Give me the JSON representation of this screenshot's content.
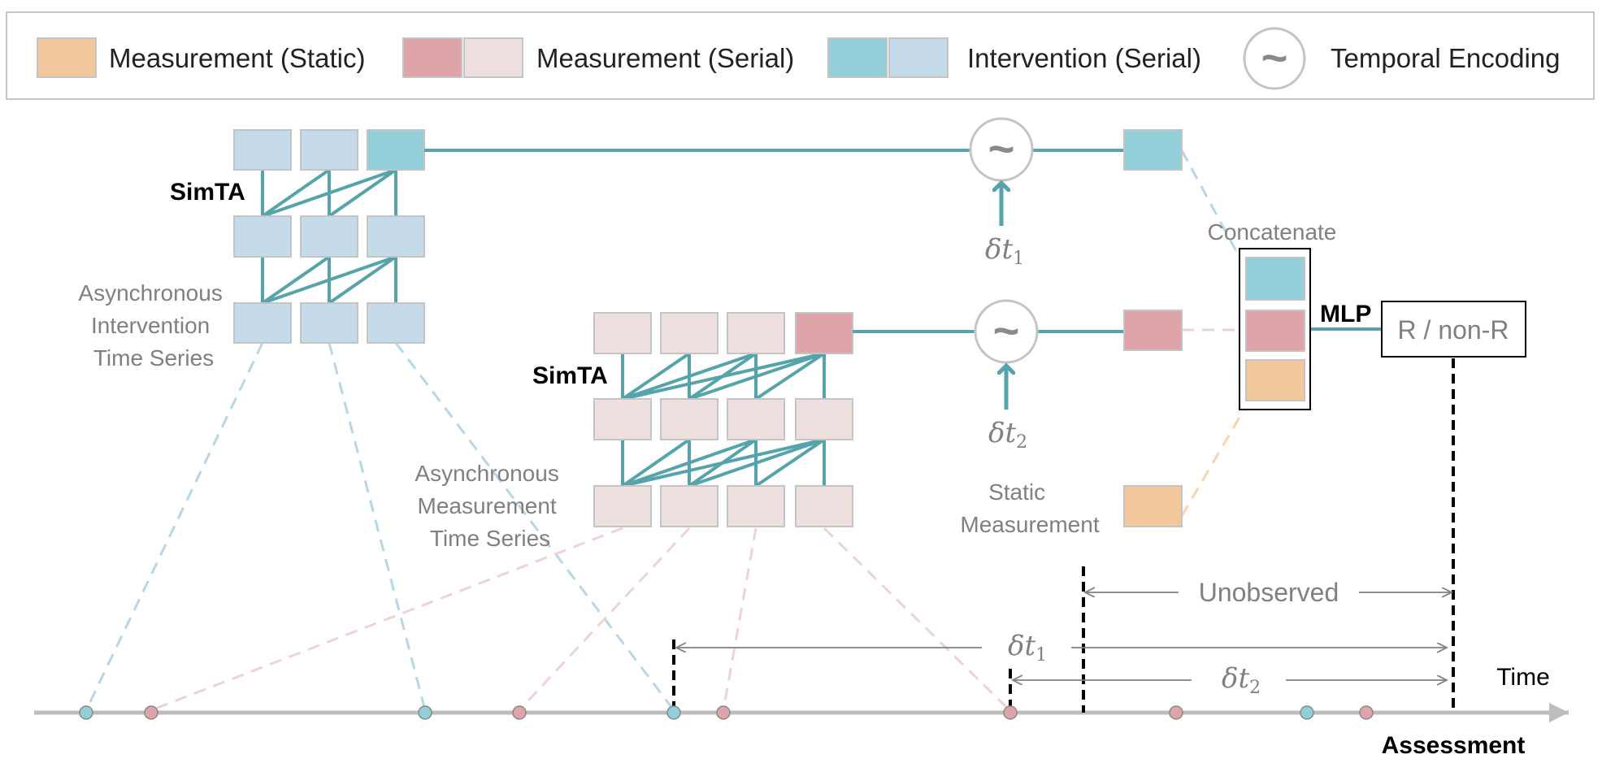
{
  "legend": {
    "static_measurement": "Measurement (Static)",
    "serial_measurement": "Measurement (Serial)",
    "serial_intervention": "Intervention (Serial)",
    "temporal_encoding": "Temporal Encoding",
    "tilde": "~"
  },
  "labels": {
    "simta_top": "SimTA",
    "simta_mid": "SimTA",
    "intervention_series": [
      "Asynchronous",
      "Intervention",
      "Time Series"
    ],
    "measurement_series": [
      "Asynchronous",
      "Measurement",
      "Time Series"
    ],
    "static_measurement": [
      "Static",
      "Measurement"
    ],
    "concatenate": "Concatenate",
    "mlp": "MLP",
    "output": "R / non-R",
    "unobserved": "Unobserved",
    "time": "Time",
    "assessment": "Assessment",
    "delta_symbol": "δt",
    "sub1": "1",
    "sub2": "2"
  },
  "colors": {
    "teal": "#56a4ab",
    "intervention_light": "#c5dbea",
    "intervention_dark": "#92cfd9",
    "measurement_light": "#ede0df",
    "measurement_dark": "#dea4a9",
    "static": "#f2c79c",
    "box_border": "#c4c4c4",
    "dash_blue": "#b9d6e6",
    "dash_pink": "#efd3d4",
    "dash_orange": "#f6d6b0",
    "axis": "#bdbdbd",
    "gray_text": "#808080"
  }
}
